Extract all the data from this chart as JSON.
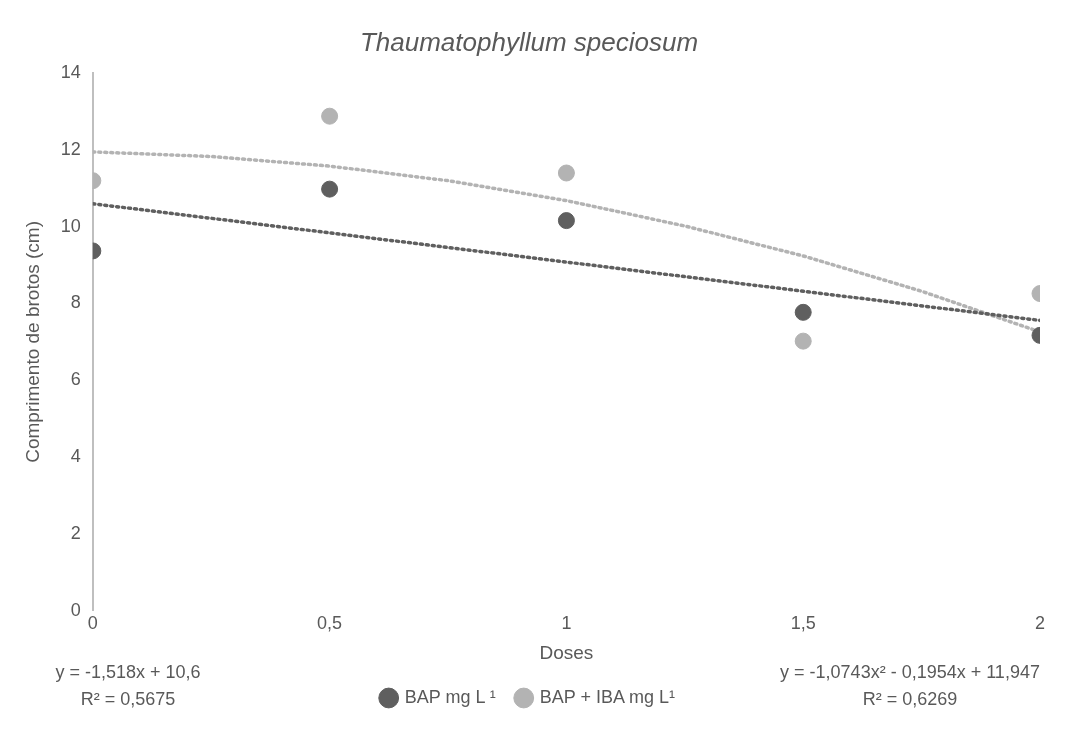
{
  "chart_data": {
    "type": "scatter",
    "title": "Thaumatophyllum speciosum",
    "xlabel": "Doses",
    "ylabel": "Comprimento de brotos (cm)",
    "x": [
      0,
      0.5,
      1,
      1.5,
      2
    ],
    "series": [
      {
        "name": "BAP mg L ¹",
        "color": "#5f5f5f",
        "values": [
          9.37,
          10.98,
          10.16,
          7.77,
          7.17
        ],
        "marker": "circle"
      },
      {
        "name": "BAP + IBA mg L¹",
        "color": "#b3b3b3",
        "values": [
          11.2,
          12.88,
          11.4,
          7.02,
          8.26
        ],
        "marker": "circle"
      },
      {
        "type": "line",
        "color": "#5f5f5f",
        "x": [
          0,
          2
        ],
        "values": [
          10.6,
          7.56
        ],
        "marker": "none",
        "line_style": "dotted"
      },
      {
        "type": "line",
        "color": "#b3b3b3",
        "x": [
          0,
          0.25,
          0.5,
          0.75,
          1,
          1.25,
          1.5,
          1.75,
          2
        ],
        "values": [
          11.95,
          11.83,
          11.58,
          11.2,
          10.68,
          10.02,
          9.24,
          8.32,
          7.26
        ],
        "marker": "none",
        "line_style": "dotted"
      }
    ],
    "xlim": [
      0,
      2
    ],
    "xticks": [
      0,
      {
        "value": 0.5,
        "label": "0,5"
      },
      1,
      {
        "value": 1.5,
        "label": "1,5"
      },
      2
    ],
    "ylim": [
      0,
      14
    ],
    "yticks": [
      0,
      2,
      4,
      6,
      8,
      10,
      12,
      14
    ],
    "grid": false,
    "legend": "bottom",
    "annotations": [
      "y = -1,518x + 10,6",
      "R² = 0,5675",
      "y = -1,0743x² - 0,1954x + 11,947",
      "R² = 0,6269"
    ]
  }
}
